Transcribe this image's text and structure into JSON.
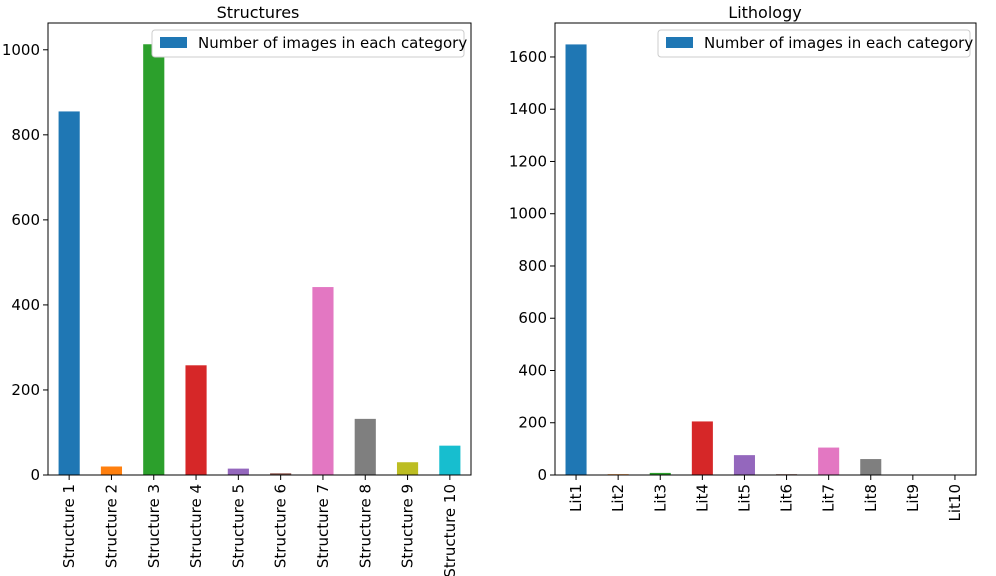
{
  "chart_data": [
    {
      "type": "bar",
      "title": "Structures",
      "categories": [
        "Structure 1",
        "Structure 2",
        "Structure 3",
        "Structure 4",
        "Structure 5",
        "Structure 6",
        "Structure 7",
        "Structure 8",
        "Structure 9",
        "Structure 10"
      ],
      "values": [
        855,
        20,
        1013,
        258,
        15,
        4,
        442,
        132,
        30,
        69
      ],
      "colors": [
        "#1f77b4",
        "#ff7f0e",
        "#2ca02c",
        "#d62728",
        "#9467bd",
        "#8c564b",
        "#e377c2",
        "#7f7f7f",
        "#bcbd22",
        "#17becf"
      ],
      "yticks": [
        0,
        200,
        400,
        600,
        800,
        1000
      ],
      "ylim": [
        0,
        1063
      ],
      "legend": "Number of images in each category",
      "legend_color": "#1f77b4",
      "legend_position": "top-right"
    },
    {
      "type": "bar",
      "title": "Lithology",
      "categories": [
        "Lit1",
        "Lit2",
        "Lit3",
        "Lit4",
        "Lit5",
        "Lit6",
        "Lit7",
        "Lit8",
        "Lit9",
        "Lit10"
      ],
      "values": [
        1648,
        3,
        8,
        205,
        76,
        3,
        105,
        61,
        0,
        0
      ],
      "colors": [
        "#1f77b4",
        "#ff7f0e",
        "#2ca02c",
        "#d62728",
        "#9467bd",
        "#8c564b",
        "#e377c2",
        "#7f7f7f",
        "#bcbd22",
        "#17becf"
      ],
      "yticks": [
        0,
        200,
        400,
        600,
        800,
        1000,
        1200,
        1400,
        1600
      ],
      "ylim": [
        0,
        1730
      ],
      "legend": "Number of images in each category",
      "legend_color": "#1f77b4",
      "legend_position": "top-right"
    }
  ]
}
